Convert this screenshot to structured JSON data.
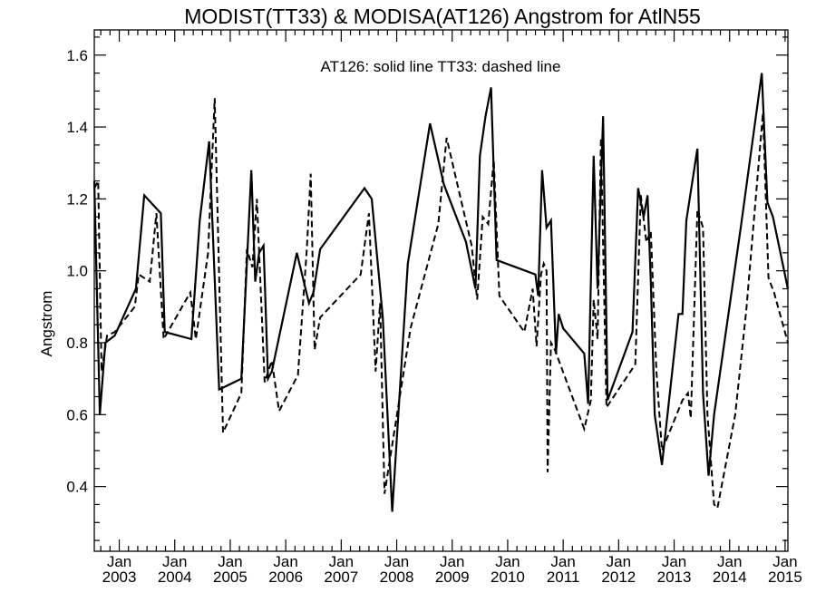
{
  "chart_data": {
    "type": "line",
    "title": "MODIST(TT33) & MODISA(AT126)  Angstrom for AtlN55",
    "annotation": "AT126: solid line    TT33: dashed line",
    "xlabel": "",
    "ylabel": "Angstrom",
    "xlim": [
      2002.55,
      2015.05
    ],
    "ylim": [
      0.22,
      1.67
    ],
    "yticks": [
      "0.4",
      "0.6",
      "0.8",
      "1.0",
      "1.2",
      "1.4",
      "1.6"
    ],
    "xticks": [
      {
        "month": "Jan",
        "year": "2003"
      },
      {
        "month": "Jan",
        "year": "2004"
      },
      {
        "month": "Jan",
        "year": "2005"
      },
      {
        "month": "Jan",
        "year": "2006"
      },
      {
        "month": "Jan",
        "year": "2007"
      },
      {
        "month": "Jan",
        "year": "2008"
      },
      {
        "month": "Jan",
        "year": "2009"
      },
      {
        "month": "Jan",
        "year": "2010"
      },
      {
        "month": "Jan",
        "year": "2011"
      },
      {
        "month": "Jan",
        "year": "2012"
      },
      {
        "month": "Jan",
        "year": "2013"
      },
      {
        "month": "Jan",
        "year": "2014"
      },
      {
        "month": "Jan",
        "year": "2015"
      }
    ],
    "series": [
      {
        "id": "AT126",
        "style": "solid",
        "x": [
          2002.55,
          2002.65,
          2002.75,
          2002.92,
          2003.3,
          2003.45,
          2003.75,
          2003.82,
          2004.3,
          2004.45,
          2004.62,
          2004.8,
          2005.2,
          2005.38,
          2005.45,
          2005.52,
          2005.6,
          2005.68,
          2005.75,
          2006.2,
          2006.42,
          2006.5,
          2006.62,
          2007.42,
          2007.55,
          2007.75,
          2007.92,
          2008.2,
          2008.6,
          2008.85,
          2009.0,
          2009.25,
          2009.42,
          2009.5,
          2009.6,
          2009.7,
          2009.8,
          2010.5,
          2010.55,
          2010.62,
          2010.7,
          2010.78,
          2010.87,
          2010.92,
          2011.0,
          2011.38,
          2011.45,
          2011.55,
          2011.62,
          2011.72,
          2011.8,
          2012.25,
          2012.35,
          2012.45,
          2012.52,
          2012.58,
          2012.65,
          2012.78,
          2013.08,
          2013.15,
          2013.22,
          2013.42,
          2013.52,
          2013.62,
          2013.72,
          2014.2,
          2014.58,
          2014.68,
          2014.78,
          2015.05
        ],
        "y": [
          1.25,
          0.6,
          0.8,
          0.82,
          0.95,
          1.21,
          1.16,
          0.83,
          0.81,
          1.14,
          1.36,
          0.67,
          0.7,
          1.28,
          0.97,
          1.05,
          1.07,
          0.7,
          0.72,
          1.05,
          0.91,
          0.94,
          1.06,
          1.23,
          1.2,
          0.87,
          0.33,
          1.02,
          1.41,
          1.24,
          1.18,
          1.08,
          0.95,
          1.32,
          1.43,
          1.51,
          1.03,
          0.99,
          0.93,
          1.28,
          1.12,
          1.14,
          0.77,
          0.88,
          0.84,
          0.77,
          0.63,
          1.32,
          0.95,
          1.43,
          0.64,
          0.83,
          1.23,
          1.15,
          1.21,
          0.97,
          0.6,
          0.46,
          0.88,
          0.88,
          1.14,
          1.34,
          0.66,
          0.43,
          0.6,
          1.12,
          1.55,
          1.19,
          1.15,
          0.95
        ]
      },
      {
        "id": "TT33",
        "style": "dashed",
        "x": [
          2002.55,
          2002.62,
          2002.68,
          2002.78,
          2002.92,
          2003.28,
          2003.35,
          2003.55,
          2003.67,
          2003.8,
          2004.28,
          2004.38,
          2004.6,
          2004.72,
          2004.87,
          2005.2,
          2005.3,
          2005.4,
          2005.48,
          2005.62,
          2005.75,
          2005.88,
          2006.22,
          2006.38,
          2006.45,
          2006.52,
          2006.62,
          2007.35,
          2007.5,
          2007.62,
          2007.7,
          2007.78,
          2008.25,
          2008.75,
          2008.9,
          2009.08,
          2009.35,
          2009.45,
          2009.55,
          2009.65,
          2009.75,
          2009.85,
          2010.3,
          2010.45,
          2010.52,
          2010.6,
          2010.65,
          2010.7,
          2010.72,
          2010.78,
          2010.85,
          2011.38,
          2011.5,
          2011.55,
          2011.62,
          2011.68,
          2011.78,
          2012.3,
          2012.4,
          2012.5,
          2012.58,
          2012.68,
          2012.78,
          2013.15,
          2013.25,
          2013.3,
          2013.42,
          2013.52,
          2013.6,
          2013.72,
          2013.78,
          2014.1,
          2014.3,
          2014.6,
          2014.7,
          2014.8,
          2015.05
        ],
        "y": [
          1.23,
          1.25,
          0.72,
          0.82,
          0.83,
          0.9,
          0.99,
          0.97,
          1.16,
          0.81,
          0.94,
          0.81,
          1.05,
          1.48,
          0.55,
          0.66,
          1.06,
          1.01,
          1.2,
          0.69,
          0.75,
          0.61,
          0.71,
          1.06,
          1.27,
          0.78,
          0.87,
          0.99,
          1.16,
          0.72,
          0.91,
          0.38,
          0.84,
          1.13,
          1.37,
          1.25,
          1.07,
          0.92,
          1.15,
          1.13,
          1.31,
          0.93,
          0.83,
          0.95,
          0.79,
          0.99,
          1.02,
          1.0,
          0.44,
          0.8,
          0.78,
          0.56,
          0.64,
          0.92,
          0.81,
          1.37,
          0.62,
          0.74,
          1.21,
          1.08,
          1.11,
          0.72,
          0.5,
          0.64,
          0.66,
          0.59,
          1.17,
          1.12,
          0.6,
          0.35,
          0.34,
          0.6,
          0.89,
          1.44,
          0.98,
          0.94,
          0.8
        ]
      }
    ],
    "colors": {
      "line": "#000000",
      "background": "#ffffff"
    }
  }
}
